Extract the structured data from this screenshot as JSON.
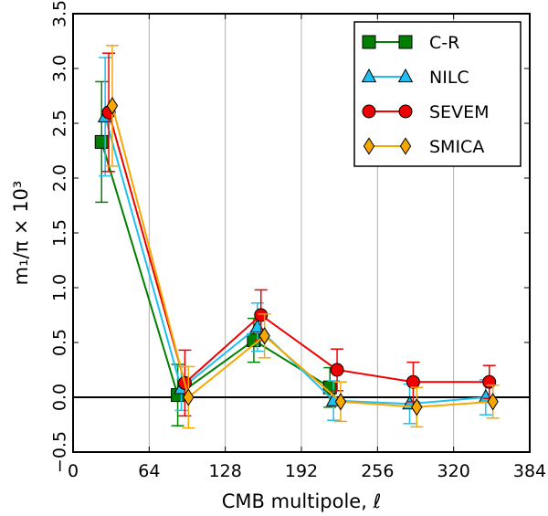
{
  "chart_data": {
    "type": "line",
    "xlabel": "CMB multipole, ℓ",
    "ylabel": "m₁/π × 10³",
    "xlim": [
      0,
      384
    ],
    "ylim": [
      -0.5,
      3.5
    ],
    "xticks": [
      0,
      64,
      128,
      192,
      256,
      320,
      384
    ],
    "xtick_labels": [
      "0",
      "64",
      "128",
      "192",
      "256",
      "320",
      "384"
    ],
    "yticks": [
      -0.5,
      0.0,
      0.5,
      1.0,
      1.5,
      2.0,
      2.5,
      3.0,
      3.5
    ],
    "ytick_labels": [
      "−0.5",
      "0.0",
      "0.5",
      "1.0",
      "1.5",
      "2.0",
      "2.5",
      "3.0",
      "3.5"
    ],
    "vertical_grid": true,
    "horizontal_reference_line": 0.0,
    "legend_position": "top-right",
    "series": [
      {
        "name": "C-R",
        "color": "#007f00",
        "marker": "square",
        "x": [
          24,
          88,
          152,
          216,
          280,
          344
        ],
        "y": [
          2.33,
          0.02,
          0.52,
          0.09,
          null,
          null
        ],
        "err": [
          0.55,
          0.28,
          0.2,
          0.18,
          null,
          null
        ]
      },
      {
        "name": "NILC",
        "color": "#1fbfef",
        "marker": "triangle",
        "x": [
          27,
          91,
          155,
          219,
          283,
          347
        ],
        "y": [
          2.56,
          0.08,
          0.64,
          -0.03,
          -0.06,
          0.0
        ],
        "err": [
          0.54,
          0.2,
          0.22,
          0.18,
          0.18,
          0.16
        ]
      },
      {
        "name": "SEVEM",
        "color": "#ef0000",
        "marker": "circle",
        "x": [
          30,
          94,
          158,
          222,
          286,
          350
        ],
        "y": [
          2.6,
          0.13,
          0.75,
          0.25,
          0.14,
          0.14
        ],
        "err": [
          0.54,
          0.3,
          0.23,
          0.19,
          0.18,
          0.15
        ]
      },
      {
        "name": "SMICA",
        "color": "#f7a700",
        "marker": "diamond",
        "x": [
          33,
          97,
          161,
          225,
          289,
          353
        ],
        "y": [
          2.66,
          0.0,
          0.56,
          -0.04,
          -0.09,
          -0.04
        ],
        "err": [
          0.55,
          0.28,
          0.2,
          0.18,
          0.18,
          0.15
        ]
      }
    ]
  }
}
